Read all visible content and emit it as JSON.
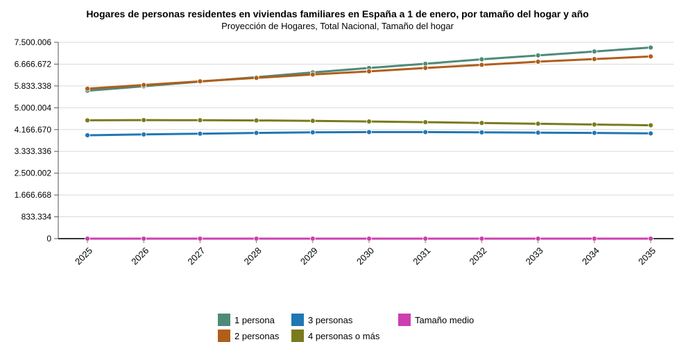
{
  "chart_data": {
    "type": "line",
    "title": "Hogares de personas residentes en viviendas familiares en España a 1 de enero, por tamaño del hogar y año",
    "subtitle": "Proyección de Hogares, Total Nacional, Tamaño del hogar",
    "xlabel": "",
    "ylabel": "",
    "categories": [
      "2025",
      "2026",
      "2027",
      "2028",
      "2029",
      "2030",
      "2031",
      "2032",
      "2033",
      "2034",
      "2035"
    ],
    "yticks": [
      "0",
      "833.334",
      "1.666.668",
      "2.500.002",
      "3.333.336",
      "4.166.670",
      "5.000.004",
      "5.833.338",
      "6.666.672",
      "7.500.006"
    ],
    "ylim": [
      0,
      7500006
    ],
    "grid": true,
    "legend_position": "bottom",
    "series": [
      {
        "name": "1 persona",
        "color": "#4e8a7a",
        "values": [
          5650000,
          5820000,
          6000000,
          6170000,
          6350000,
          6520000,
          6680000,
          6850000,
          7000000,
          7150000,
          7300000
        ]
      },
      {
        "name": "2 personas",
        "color": "#b05e1a",
        "values": [
          5730000,
          5870000,
          6010000,
          6140000,
          6270000,
          6390000,
          6520000,
          6640000,
          6760000,
          6860000,
          6960000
        ]
      },
      {
        "name": "3 personas",
        "color": "#1f77b4",
        "values": [
          3950000,
          3980000,
          4010000,
          4040000,
          4060000,
          4070000,
          4070000,
          4060000,
          4050000,
          4040000,
          4020000
        ]
      },
      {
        "name": "4 personas o más",
        "color": "#7a7a1e",
        "values": [
          4520000,
          4530000,
          4525000,
          4515000,
          4500000,
          4475000,
          4450000,
          4420000,
          4390000,
          4360000,
          4330000
        ]
      },
      {
        "name": "Tamaño medio",
        "color": "#cc3fb0",
        "values": [
          2.5,
          2.49,
          2.48,
          2.47,
          2.46,
          2.45,
          2.44,
          2.43,
          2.42,
          2.41,
          2.4
        ]
      }
    ]
  }
}
